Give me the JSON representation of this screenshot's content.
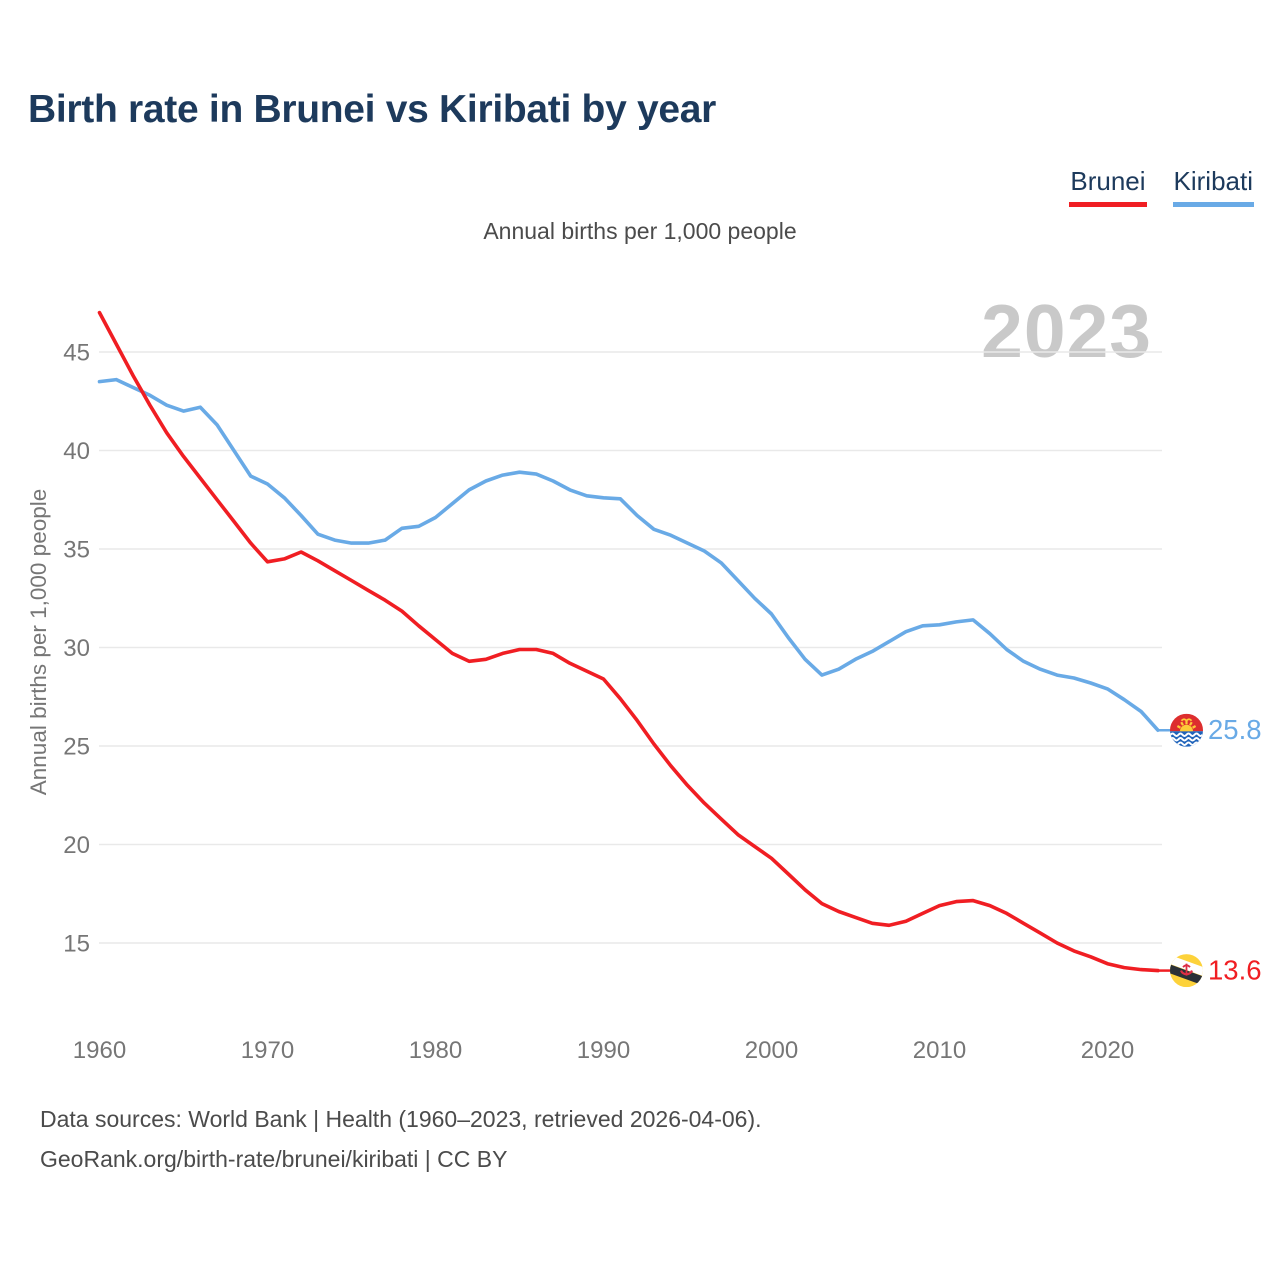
{
  "title": "Birth rate in Brunei vs Kiribati by year",
  "subtitle": "Annual births per 1,000 people",
  "watermark": "2023",
  "legend": {
    "brunei": {
      "label": "Brunei",
      "color": "#f01e23"
    },
    "kiribati": {
      "label": "Kiribati",
      "color": "#69aae6"
    }
  },
  "colors": {
    "title": "#1d3a5c",
    "axis_labels": "#767676",
    "grid": "#e9e9e9",
    "watermark": "#c9c9c9",
    "footer": "#4b4b4b"
  },
  "footer": {
    "line1": "Data sources: World Bank | Health (1960–2023, retrieved 2026-04-06).",
    "line2": "GeoRank.org/birth-rate/brunei/kiribati | CC BY"
  },
  "chart_data": {
    "type": "line",
    "title": "Birth rate in Brunei vs Kiribati by year",
    "xlabel": "",
    "ylabel": "Annual births per 1,000 people",
    "grid": "horizontal",
    "legend_position": "top-right",
    "xticks": [
      1960,
      1970,
      1980,
      1990,
      2000,
      2010,
      2020
    ],
    "yticks": [
      15,
      20,
      25,
      30,
      35,
      40,
      45
    ],
    "ylim": [
      13,
      47.5
    ],
    "x": [
      1960,
      1961,
      1962,
      1963,
      1964,
      1965,
      1966,
      1967,
      1968,
      1969,
      1970,
      1971,
      1972,
      1973,
      1974,
      1975,
      1976,
      1977,
      1978,
      1979,
      1980,
      1981,
      1982,
      1983,
      1984,
      1985,
      1986,
      1987,
      1988,
      1989,
      1990,
      1991,
      1992,
      1993,
      1994,
      1995,
      1996,
      1997,
      1998,
      1999,
      2000,
      2001,
      2002,
      2003,
      2004,
      2005,
      2006,
      2007,
      2008,
      2009,
      2010,
      2011,
      2012,
      2013,
      2014,
      2015,
      2016,
      2017,
      2018,
      2019,
      2020,
      2021,
      2022,
      2023
    ],
    "series": [
      {
        "name": "Brunei",
        "color": "#f01e23",
        "flag": "brunei",
        "end_label": "13.6",
        "values": [
          47.0,
          45.4,
          43.8,
          42.3,
          40.9,
          39.7,
          38.6,
          37.5,
          36.4,
          35.3,
          34.35,
          34.5,
          34.85,
          34.4,
          33.9,
          33.4,
          32.9,
          32.4,
          31.85,
          31.1,
          30.4,
          29.7,
          29.3,
          29.4,
          29.7,
          29.9,
          29.9,
          29.7,
          29.2,
          28.8,
          28.4,
          27.4,
          26.3,
          25.1,
          24.0,
          23.0,
          22.1,
          21.3,
          20.5,
          19.9,
          19.3,
          18.5,
          17.7,
          17.0,
          16.6,
          16.3,
          16.0,
          15.9,
          16.1,
          16.5,
          16.9,
          17.1,
          17.15,
          16.9,
          16.5,
          16.0,
          15.5,
          15.0,
          14.6,
          14.3,
          13.95,
          13.75,
          13.65,
          13.6
        ]
      },
      {
        "name": "Kiribati",
        "color": "#69aae6",
        "flag": "kiribati",
        "end_label": "25.8",
        "values": [
          43.5,
          43.6,
          43.2,
          42.8,
          42.3,
          42.0,
          42.2,
          41.3,
          40.0,
          38.7,
          38.3,
          37.6,
          36.7,
          35.75,
          35.45,
          35.3,
          35.3,
          35.45,
          36.05,
          36.15,
          36.6,
          37.3,
          38.0,
          38.45,
          38.75,
          38.9,
          38.8,
          38.45,
          38.0,
          37.7,
          37.6,
          37.55,
          36.7,
          36.0,
          35.7,
          35.3,
          34.9,
          34.3,
          33.4,
          32.5,
          31.7,
          30.5,
          29.4,
          28.6,
          28.9,
          29.4,
          29.8,
          30.3,
          30.8,
          31.1,
          31.15,
          31.3,
          31.4,
          30.7,
          29.9,
          29.3,
          28.9,
          28.6,
          28.45,
          28.2,
          27.9,
          27.35,
          26.75,
          25.8
        ]
      }
    ]
  }
}
